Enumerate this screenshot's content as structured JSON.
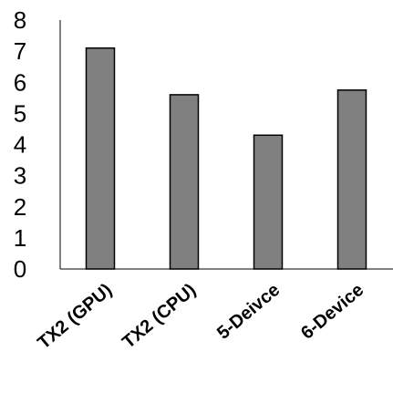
{
  "chart_data": {
    "type": "bar",
    "categories": [
      "TX2 (GPU)",
      "TX2 (CPU)",
      "5-Deivce",
      "6-Device"
    ],
    "series": [
      {
        "values": [
          7.1,
          5.6,
          4.3,
          5.75
        ]
      }
    ],
    "title": "",
    "xlabel": "",
    "ylabel": "",
    "ylim": [
      0,
      8
    ],
    "yticks": [
      "0",
      "1",
      "2",
      "3",
      "4",
      "5",
      "6",
      "7",
      "8"
    ],
    "grid": false,
    "legend": "none",
    "colors": {
      "bar_fill": "#808080",
      "bar_stroke": "#000000",
      "axis": "#000000"
    }
  }
}
